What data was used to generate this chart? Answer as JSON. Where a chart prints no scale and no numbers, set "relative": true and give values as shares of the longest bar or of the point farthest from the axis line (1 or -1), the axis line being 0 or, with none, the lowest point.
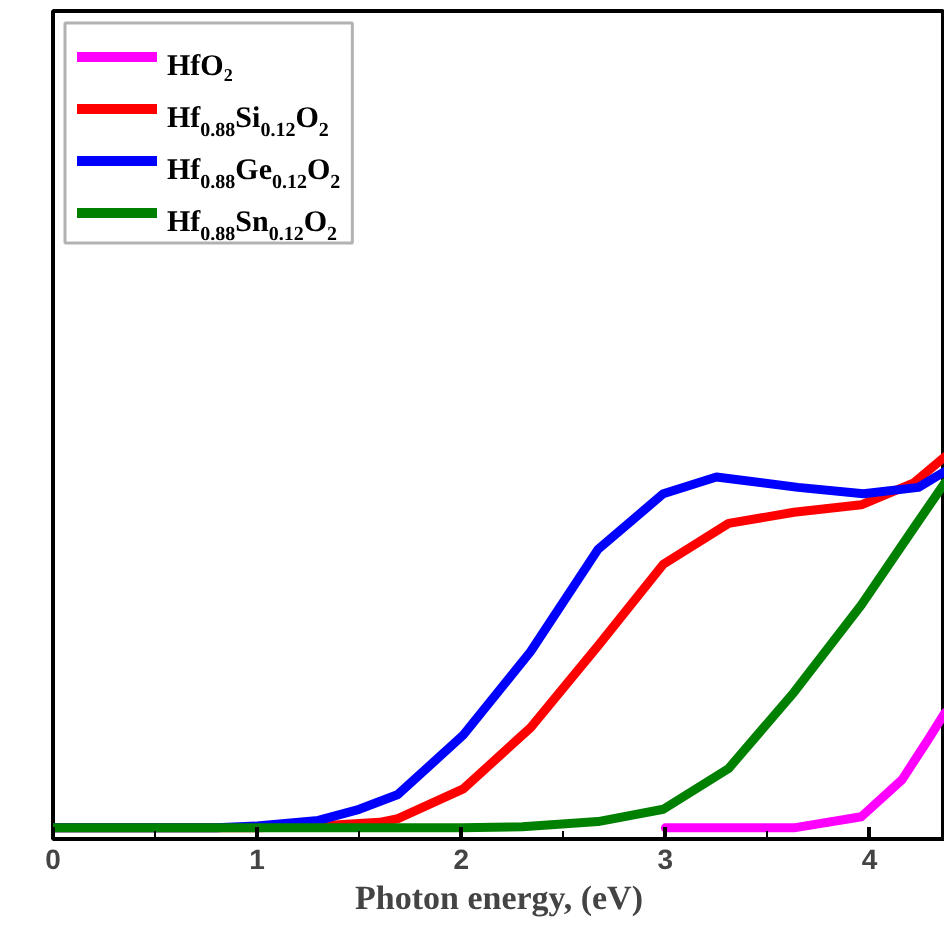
{
  "chart_data": {
    "type": "line",
    "relative": true,
    "xlabel": "Photon energy, (eV)",
    "xlim": [
      0,
      4.37
    ],
    "xticks": [
      0,
      1,
      2,
      3,
      4
    ],
    "legend": "top left",
    "grid": false,
    "marker": "none",
    "line_style": "solid",
    "series": [
      {
        "name": "HfO₂",
        "color": "#ff00ff",
        "x": [
          3.0,
          3.3,
          3.63,
          3.96,
          4.16,
          4.29,
          4.37
        ],
        "values": [
          0,
          0,
          0,
          0.03,
          0.13,
          0.24,
          0.31
        ]
      },
      {
        "name": "Hf$_{0.88}$Si$_{0.12}$O$_{2}$",
        "color": "#ff0000",
        "x": [
          0,
          1,
          1.3,
          1.6,
          1.69,
          2.01,
          2.34,
          2.67,
          2.99,
          3.31,
          3.63,
          3.96,
          4.22,
          4.37
        ],
        "values": [
          0,
          0,
          0.005,
          0.015,
          0.025,
          0.105,
          0.27,
          0.49,
          0.71,
          0.82,
          0.85,
          0.87,
          0.93,
          1
        ]
      },
      {
        "name": "Hf$_{0.88}$Ge$_{0.12}$O$_{2}$",
        "color": "#0000ff",
        "x": [
          0,
          0.8,
          1,
          1.3,
          1.5,
          1.69,
          2.01,
          2.34,
          2.67,
          2.99,
          3.25,
          3.65,
          3.97,
          4.24,
          4.37
        ],
        "values": [
          0,
          0,
          0.005,
          0.02,
          0.05,
          0.09,
          0.25,
          0.475,
          0.75,
          0.9,
          0.945,
          0.917,
          0.9,
          0.917,
          0.96
        ]
      },
      {
        "name": "Hf$_{0.88}$Sn$_{0.12}$O$_{2}$",
        "color": "#008000",
        "x": [
          0,
          1,
          2,
          2.3,
          2.67,
          2.99,
          3.31,
          3.63,
          3.96,
          4.22,
          4.37
        ],
        "values": [
          0,
          0,
          0,
          0.003,
          0.017,
          0.05,
          0.16,
          0.365,
          0.6,
          0.81,
          0.93
        ]
      }
    ]
  }
}
